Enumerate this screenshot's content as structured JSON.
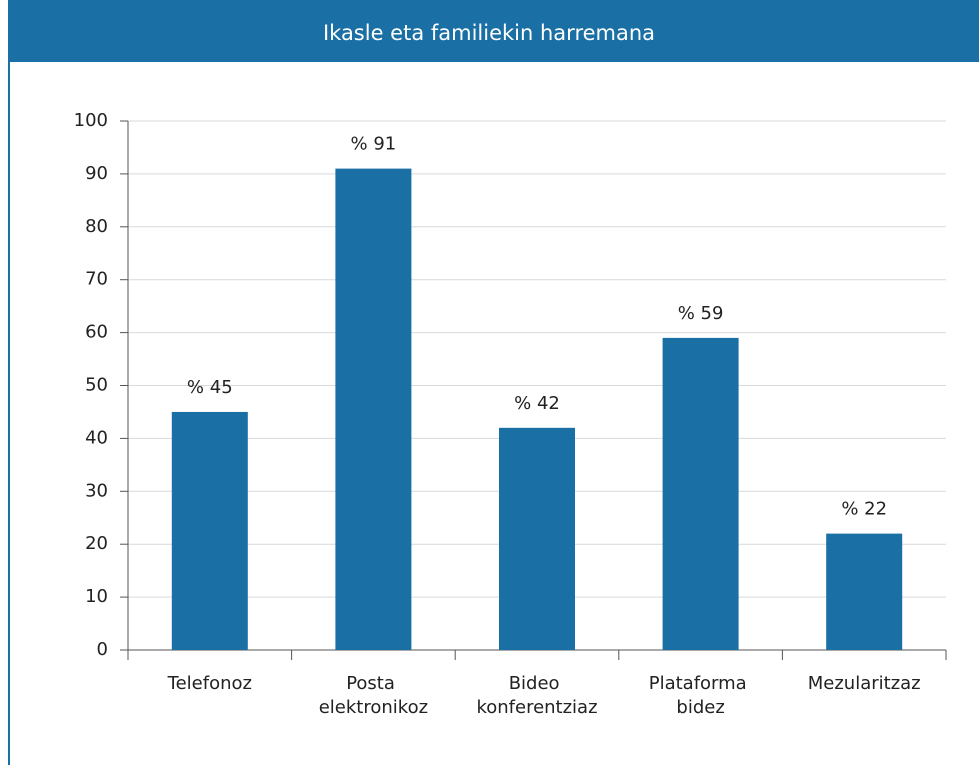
{
  "chart_data": {
    "type": "bar",
    "title": "Ikasle eta familiekin harremana",
    "categories": [
      "Telefonoz",
      "Posta elektronikoz",
      "Bideo konferentziaz",
      "Plataforma bidez",
      "Mezularitzaz"
    ],
    "values": [
      45,
      91,
      42,
      59,
      22
    ],
    "value_labels": [
      "% 45",
      "% 91",
      "% 42",
      "% 59",
      "% 22"
    ],
    "color": "#1a6fa5",
    "ylim": [
      0,
      100
    ],
    "yticks": [
      0,
      10,
      20,
      30,
      40,
      50,
      60,
      70,
      80,
      90,
      100
    ],
    "grid": true
  }
}
